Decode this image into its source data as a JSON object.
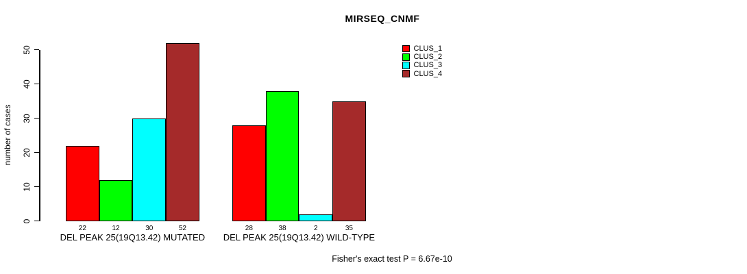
{
  "chart_data": {
    "type": "bar",
    "title": "MIRSEQ_CNMF",
    "xlabel": "",
    "ylabel": "number of cases",
    "ylim": [
      0,
      52
    ],
    "yticks": [
      0,
      10,
      20,
      30,
      40,
      50
    ],
    "grid": false,
    "legend_position": "top-right-outside",
    "bar_border_color": "#000000",
    "background": "#ffffff",
    "categories": [
      "DEL PEAK 25(19Q13.42) MUTATED",
      "DEL PEAK 25(19Q13.42) WILD-TYPE"
    ],
    "series": [
      {
        "name": "CLUS_1",
        "color": "#ff0000",
        "values": [
          22,
          28
        ]
      },
      {
        "name": "CLUS_2",
        "color": "#00ff00",
        "values": [
          12,
          38
        ]
      },
      {
        "name": "CLUS_3",
        "color": "#00ffff",
        "values": [
          30,
          2
        ]
      },
      {
        "name": "CLUS_4",
        "color": "#a52a2a",
        "values": [
          52,
          35
        ]
      }
    ],
    "bar_value_labels_shown": true,
    "annotation": "Fisher's exact test P = 6.67e-10"
  }
}
